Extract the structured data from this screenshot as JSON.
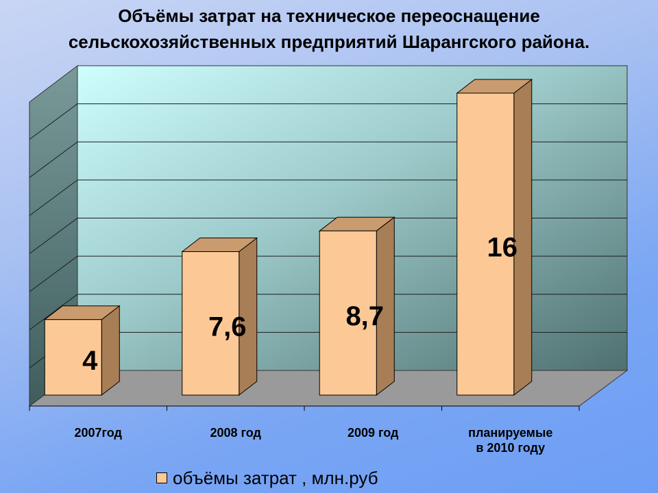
{
  "header": {
    "title_line1": "Объёмы затрат на техническое переоснащение",
    "title_line2": "сельскохозяйственных предприятий Шарангского района."
  },
  "chart_data": {
    "type": "bar",
    "categories": [
      [
        "2007год"
      ],
      [
        "2008 год"
      ],
      [
        "2009 год"
      ],
      [
        "планируемые",
        "в 2010 году"
      ]
    ],
    "series": [
      {
        "name": "объёмы затрат , млн.руб",
        "values": [
          4,
          7.6,
          8.7,
          16
        ]
      }
    ],
    "data_labels": [
      "4",
      "7,6",
      "8,7",
      "16"
    ],
    "ylim": [
      0,
      16
    ],
    "grid": true,
    "legend_position": "bottom",
    "colors": {
      "bar_front": "#fcc996",
      "bar_top": "#c99b6e",
      "bar_side": "#a87e56",
      "wall_light": "#c8fcfc",
      "wall_dark": "#567878",
      "floor": "#9a9a9a"
    }
  }
}
